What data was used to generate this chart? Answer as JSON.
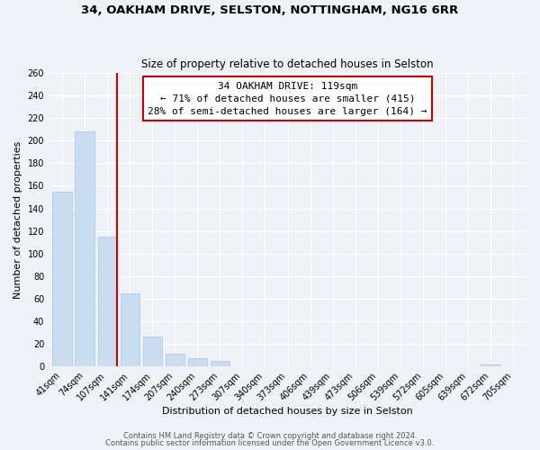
{
  "title": "34, OAKHAM DRIVE, SELSTON, NOTTINGHAM, NG16 6RR",
  "subtitle": "Size of property relative to detached houses in Selston",
  "xlabel": "Distribution of detached houses by size in Selston",
  "ylabel": "Number of detached properties",
  "bar_labels": [
    "41sqm",
    "74sqm",
    "107sqm",
    "141sqm",
    "174sqm",
    "207sqm",
    "240sqm",
    "273sqm",
    "307sqm",
    "340sqm",
    "373sqm",
    "406sqm",
    "439sqm",
    "473sqm",
    "506sqm",
    "539sqm",
    "572sqm",
    "605sqm",
    "639sqm",
    "672sqm",
    "705sqm"
  ],
  "bar_values": [
    155,
    208,
    115,
    65,
    26,
    11,
    7,
    5,
    0,
    0,
    0,
    0,
    0,
    0,
    0,
    0,
    0,
    0,
    0,
    2,
    0
  ],
  "bar_color": "#c8ddf0",
  "bar_edge_color": "#a8c8e8",
  "vline_color": "#cc0000",
  "annotation_title": "34 OAKHAM DRIVE: 119sqm",
  "annotation_line1": "← 71% of detached houses are smaller (415)",
  "annotation_line2": "28% of semi-detached houses are larger (164) →",
  "annotation_box_facecolor": "#ffffff",
  "annotation_box_edgecolor": "#cc0000",
  "ylim": [
    0,
    260
  ],
  "yticks": [
    0,
    20,
    40,
    60,
    80,
    100,
    120,
    140,
    160,
    180,
    200,
    220,
    240,
    260
  ],
  "footer1": "Contains HM Land Registry data © Crown copyright and database right 2024.",
  "footer2": "Contains public sector information licensed under the Open Government Licence v3.0.",
  "bg_color": "#eef2f7",
  "plot_bg_color": "#eef2f7",
  "grid_color": "#ffffff",
  "title_fontsize": 9.5,
  "subtitle_fontsize": 8.5,
  "axis_label_fontsize": 8,
  "tick_fontsize": 7,
  "annotation_fontsize": 8,
  "footer_fontsize": 6
}
